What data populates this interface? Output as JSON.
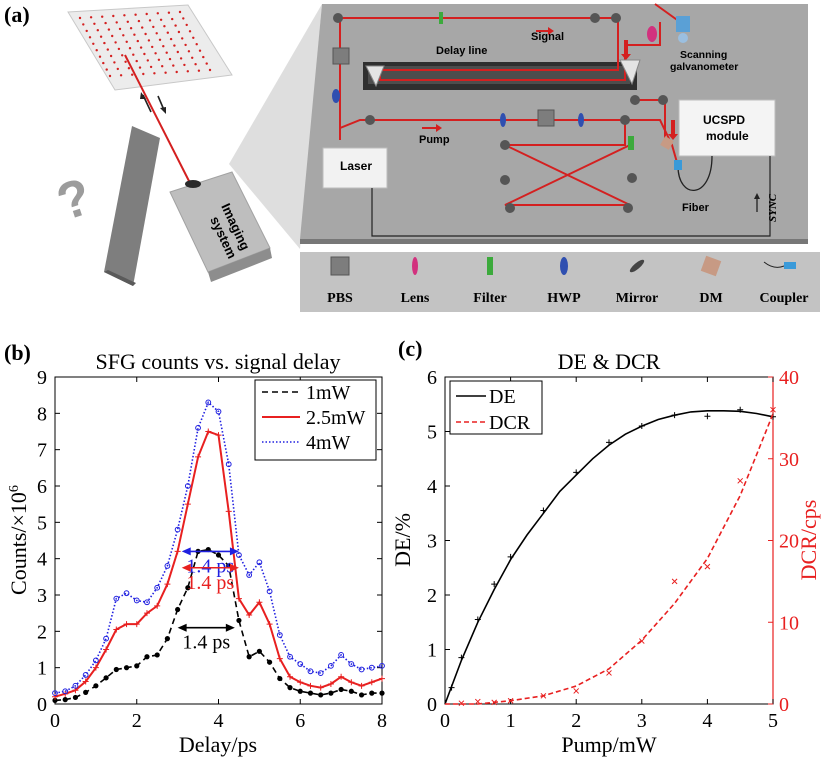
{
  "panels": {
    "a": "(a)",
    "b": "(b)",
    "c": "(c)"
  },
  "schematic": {
    "labels": {
      "delay_line": "Delay line",
      "signal": "Signal",
      "scanning": "Scanning",
      "galvanometer": "galvanometer",
      "pump": "Pump",
      "laser": "Laser",
      "ucspd_1": "UCSPD",
      "ucspd_2": "module",
      "fiber": "Fiber",
      "sync": "SYNC",
      "imaging_1": "Imaging",
      "imaging_2": "system",
      "question": "?"
    },
    "legend": [
      {
        "label": "PBS",
        "icon": "pbs-cube-icon"
      },
      {
        "label": "Lens",
        "icon": "lens-icon"
      },
      {
        "label": "Filter",
        "icon": "filter-icon"
      },
      {
        "label": "HWP",
        "icon": "hwp-icon"
      },
      {
        "label": "Mirror",
        "icon": "mirror-icon"
      },
      {
        "label": "DM",
        "icon": "dichroic-mirror-icon"
      },
      {
        "label": "Coupler",
        "icon": "coupler-icon"
      }
    ],
    "colors": {
      "beam": "#d42020",
      "platform": "#a9a9a9",
      "lens": "#d2317e",
      "filter": "#3caa3c",
      "hwp": "#2f4fb0",
      "dm": "#c79a84",
      "coupler": "#3a9ad9"
    }
  },
  "chart_data": [
    {
      "type": "line",
      "title": "SFG counts vs. signal delay",
      "xlabel": "Delay/ps",
      "ylabel": "Counts/×10",
      "ylabel_sup": "6",
      "xlim": [
        0,
        8
      ],
      "ylim": [
        0,
        9
      ],
      "xticks": [
        0,
        2,
        4,
        6,
        8
      ],
      "yticks": [
        0,
        1,
        2,
        3,
        4,
        5,
        6,
        7,
        8,
        9
      ],
      "legend_position": "top-right",
      "x": [
        0,
        0.25,
        0.5,
        0.75,
        1.0,
        1.25,
        1.5,
        1.75,
        2.0,
        2.25,
        2.5,
        2.75,
        3.0,
        3.25,
        3.5,
        3.75,
        4.0,
        4.25,
        4.5,
        4.75,
        5.0,
        5.25,
        5.5,
        5.75,
        6.0,
        6.25,
        6.5,
        6.75,
        7.0,
        7.25,
        7.5,
        7.75,
        8.0
      ],
      "series": [
        {
          "name": "1mW",
          "color": "#000000",
          "style": "dashed",
          "marker": "dot",
          "values": [
            0.1,
            0.12,
            0.18,
            0.32,
            0.5,
            0.72,
            0.95,
            1.0,
            1.05,
            1.3,
            1.35,
            1.8,
            2.6,
            3.2,
            4.2,
            4.25,
            4.1,
            3.8,
            2.3,
            1.3,
            1.45,
            1.15,
            0.7,
            0.45,
            0.35,
            0.3,
            0.25,
            0.3,
            0.4,
            0.35,
            0.25,
            0.3,
            0.3
          ]
        },
        {
          "name": "2.5mW",
          "color": "#e82020",
          "style": "solid",
          "marker": "plus",
          "values": [
            0.2,
            0.28,
            0.38,
            0.62,
            1.0,
            1.5,
            2.05,
            2.2,
            2.2,
            2.5,
            2.7,
            3.3,
            4.2,
            5.5,
            6.8,
            7.5,
            7.4,
            5.3,
            2.9,
            2.45,
            2.8,
            2.2,
            1.25,
            0.75,
            0.6,
            0.5,
            0.45,
            0.55,
            0.75,
            0.6,
            0.5,
            0.6,
            0.7
          ]
        },
        {
          "name": "4mW",
          "color": "#2020e0",
          "style": "dotted",
          "marker": "circle",
          "values": [
            0.3,
            0.35,
            0.5,
            0.8,
            1.2,
            1.8,
            2.9,
            3.05,
            2.85,
            2.8,
            3.2,
            3.8,
            4.8,
            6.0,
            7.6,
            8.3,
            8.05,
            6.6,
            4.1,
            3.55,
            3.9,
            3.1,
            1.9,
            1.3,
            1.1,
            0.9,
            0.85,
            1.05,
            1.35,
            1.1,
            0.95,
            1.0,
            1.05
          ]
        }
      ],
      "annotations": [
        {
          "text": "1.4 ps",
          "color": "#2020e0",
          "x_start": 3.1,
          "x_end": 4.5,
          "y": 4.2
        },
        {
          "text": "1.4 ps",
          "color": "#e82020",
          "x_start": 3.1,
          "x_end": 4.5,
          "y": 3.75
        },
        {
          "text": "1.4 ps",
          "color": "#000000",
          "x_start": 3.0,
          "x_end": 4.4,
          "y": 2.1
        }
      ]
    },
    {
      "type": "line",
      "title": "DE & DCR",
      "xlabel": "Pump/mW",
      "ylabel": "DE/%",
      "ylabel_right": "DCR/cps",
      "xlim": [
        0,
        5
      ],
      "ylim": [
        0,
        6
      ],
      "ylim_right": [
        0,
        40
      ],
      "xticks": [
        0,
        1,
        2,
        3,
        4,
        5
      ],
      "yticks": [
        0,
        1,
        2,
        3,
        4,
        5,
        6
      ],
      "yticks_right": [
        0,
        10,
        20,
        30,
        40
      ],
      "legend_position": "top-left",
      "series": [
        {
          "name": "DE",
          "axis": "left",
          "color": "#000000",
          "style": "solid",
          "fit_x": [
            0,
            0.25,
            0.5,
            0.75,
            1.0,
            1.25,
            1.5,
            1.75,
            2.0,
            2.25,
            2.5,
            2.75,
            3.0,
            3.25,
            3.5,
            3.75,
            4.0,
            4.25,
            4.5,
            4.75,
            5.0
          ],
          "fit_y": [
            0,
            0.8,
            1.5,
            2.1,
            2.65,
            3.1,
            3.5,
            3.9,
            4.2,
            4.5,
            4.75,
            4.95,
            5.1,
            5.22,
            5.3,
            5.36,
            5.38,
            5.38,
            5.37,
            5.33,
            5.27
          ],
          "points_x": [
            0.1,
            0.25,
            0.5,
            0.75,
            1.0,
            1.5,
            2.0,
            2.5,
            3.0,
            3.5,
            4.0,
            4.5,
            5.0
          ],
          "points_y": [
            0.3,
            0.85,
            1.55,
            2.2,
            2.7,
            3.55,
            4.25,
            4.8,
            5.1,
            5.3,
            5.28,
            5.4,
            5.27
          ]
        },
        {
          "name": "DCR",
          "axis": "right",
          "color": "#e82020",
          "style": "dashed",
          "fit_x": [
            0,
            0.5,
            1.0,
            1.5,
            2.0,
            2.5,
            3.0,
            3.5,
            4.0,
            4.5,
            5.0
          ],
          "fit_y": [
            0,
            0,
            0.4,
            1.0,
            2.2,
            4.3,
            7.8,
            12.3,
            17.8,
            25.5,
            35.5
          ],
          "points_x": [
            0.25,
            0.5,
            0.75,
            1.0,
            1.5,
            2.0,
            2.5,
            3.0,
            3.5,
            4.0,
            4.5,
            5.0
          ],
          "points_y": [
            0.1,
            0.3,
            0.2,
            0.4,
            1.0,
            1.6,
            3.8,
            7.7,
            15.0,
            16.8,
            27.3,
            36.0
          ]
        }
      ]
    }
  ]
}
